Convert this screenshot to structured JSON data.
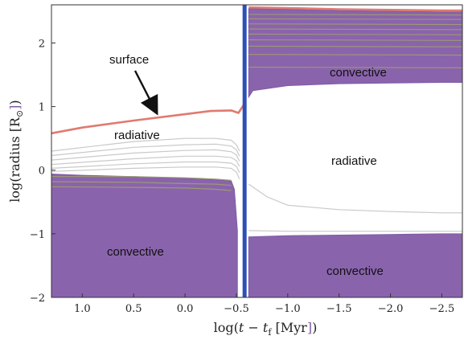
{
  "colors": {
    "convective_fill": "#8a63ad",
    "convective_edge": "#7f5aa4",
    "surface_line": "#e07a70",
    "shell_lines": "#c9c9c9",
    "shell_lines_in_convective": "#9c9c6f",
    "divider_line": "#2c50b6",
    "axis": "#333333",
    "label_mu": "#1a1a1a",
    "label_unit_accent": "#7f5aa4"
  },
  "chart_data": {
    "type": "area",
    "xlabel": "log(t − t_f [Myr])",
    "ylabel": "log(radius [R⊙])",
    "xlim": [
      1.3,
      -2.7
    ],
    "ylim": [
      -2,
      2.6
    ],
    "x_reversed": true,
    "xticks": [
      1.0,
      0.5,
      0.0,
      -0.5,
      -1.0,
      -1.5,
      -2.0,
      -2.5
    ],
    "xtick_labels": [
      "1.0",
      "0.5",
      "0.0",
      "−0.5",
      "−1.0",
      "−1.5",
      "−2.0",
      "−2.5"
    ],
    "yticks": [
      -2,
      -1,
      0,
      1,
      2
    ],
    "ytick_labels": [
      "−2",
      "−1",
      "0",
      "1",
      "2"
    ],
    "grid": false,
    "annotations": [
      "surface",
      "radiative",
      "convective",
      "radiative",
      "convective",
      "convective"
    ],
    "divider_x": -0.58,
    "surface_left": {
      "x": [
        1.3,
        1.0,
        0.5,
        0.0,
        -0.25,
        -0.45,
        -0.52,
        -0.58
      ],
      "y": [
        0.58,
        0.67,
        0.78,
        0.88,
        0.93,
        0.94,
        0.9,
        1.05
      ]
    },
    "surface_right": {
      "x": [
        -0.62,
        -1.0,
        -1.5,
        -2.0,
        -2.5,
        -2.7
      ],
      "y": [
        2.56,
        2.55,
        2.53,
        2.52,
        2.51,
        2.51
      ]
    },
    "core_convective_left_top": {
      "x": [
        1.3,
        1.0,
        0.5,
        0.0,
        -0.3,
        -0.45,
        -0.48,
        -0.51
      ],
      "y": [
        -0.06,
        -0.08,
        -0.1,
        -0.13,
        -0.15,
        -0.17,
        -0.3,
        -0.95
      ]
    },
    "envelope_convective_right_bottom": {
      "x": [
        -0.62,
        -0.66,
        -1.0,
        -1.5,
        -2.0,
        -2.5,
        -2.7
      ],
      "y": [
        1.15,
        1.25,
        1.33,
        1.36,
        1.37,
        1.38,
        1.38
      ]
    },
    "core_convective_right_top": {
      "x": [
        -0.62,
        -1.0,
        -1.5,
        -2.0,
        -2.5,
        -2.7
      ],
      "y": [
        -1.05,
        -1.03,
        -1.02,
        -1.01,
        -1.0,
        -1.0
      ]
    },
    "shell_lines_left": [
      {
        "x": [
          1.3,
          0.5,
          0.0,
          -0.3,
          -0.45,
          -0.5,
          -0.53
        ],
        "y": [
          0.3,
          0.45,
          0.5,
          0.5,
          0.47,
          0.4,
          0.3
        ]
      },
      {
        "x": [
          1.3,
          0.5,
          0.0,
          -0.3,
          -0.45,
          -0.5,
          -0.53
        ],
        "y": [
          0.23,
          0.36,
          0.4,
          0.41,
          0.38,
          0.32,
          0.22
        ]
      },
      {
        "x": [
          1.3,
          0.5,
          0.0,
          -0.3,
          -0.45,
          -0.5,
          -0.53
        ],
        "y": [
          0.16,
          0.27,
          0.31,
          0.32,
          0.29,
          0.24,
          0.14
        ]
      },
      {
        "x": [
          1.3,
          0.5,
          0.0,
          -0.3,
          -0.45,
          -0.5,
          -0.53
        ],
        "y": [
          0.09,
          0.18,
          0.22,
          0.22,
          0.2,
          0.15,
          0.06
        ]
      },
      {
        "x": [
          1.3,
          0.5,
          0.0,
          -0.3,
          -0.45,
          -0.5,
          -0.53
        ],
        "y": [
          0.03,
          0.1,
          0.13,
          0.13,
          0.11,
          0.06,
          -0.04
        ]
      },
      {
        "x": [
          1.3,
          0.5,
          0.0,
          -0.3,
          -0.45,
          -0.5,
          -0.53
        ],
        "y": [
          -0.02,
          0.03,
          0.05,
          0.05,
          0.03,
          -0.03,
          -0.14
        ]
      },
      {
        "x": [
          1.3,
          0.5,
          0.0,
          -0.3,
          -0.45
        ],
        "y": [
          -0.1,
          -0.1,
          -0.12,
          -0.14,
          -0.16
        ]
      },
      {
        "x": [
          1.3,
          0.5,
          0.0,
          -0.3,
          -0.45
        ],
        "y": [
          -0.18,
          -0.19,
          -0.21,
          -0.22,
          -0.24
        ]
      },
      {
        "x": [
          1.3,
          0.5,
          0.0,
          -0.3,
          -0.45
        ],
        "y": [
          -0.26,
          -0.27,
          -0.28,
          -0.3,
          -0.32
        ]
      }
    ],
    "shell_lines_right": [
      {
        "x": [
          -0.62,
          -0.8,
          -1.0,
          -1.5,
          -2.0,
          -2.5,
          -2.7
        ],
        "y": [
          -0.22,
          -0.42,
          -0.55,
          -0.62,
          -0.65,
          -0.67,
          -0.67
        ]
      },
      {
        "x": [
          -0.62,
          -1.0,
          -1.5,
          -2.0,
          -2.7
        ],
        "y": [
          -0.95,
          -0.96,
          -0.96,
          -0.96,
          -0.96
        ]
      }
    ],
    "shell_lines_envelope": {
      "x_start": -0.62,
      "x_end": -2.7,
      "y": [
        2.45,
        2.38,
        2.3,
        2.22,
        2.14,
        2.05,
        1.95,
        1.82,
        1.62
      ]
    }
  },
  "text": {
    "annotation_surface": "surface",
    "annotation_radiative_left": "radiative",
    "annotation_convective_left": "convective",
    "annotation_convective_top_right": "convective",
    "annotation_radiative_right": "radiative",
    "annotation_convective_bottom_right": "convective"
  }
}
